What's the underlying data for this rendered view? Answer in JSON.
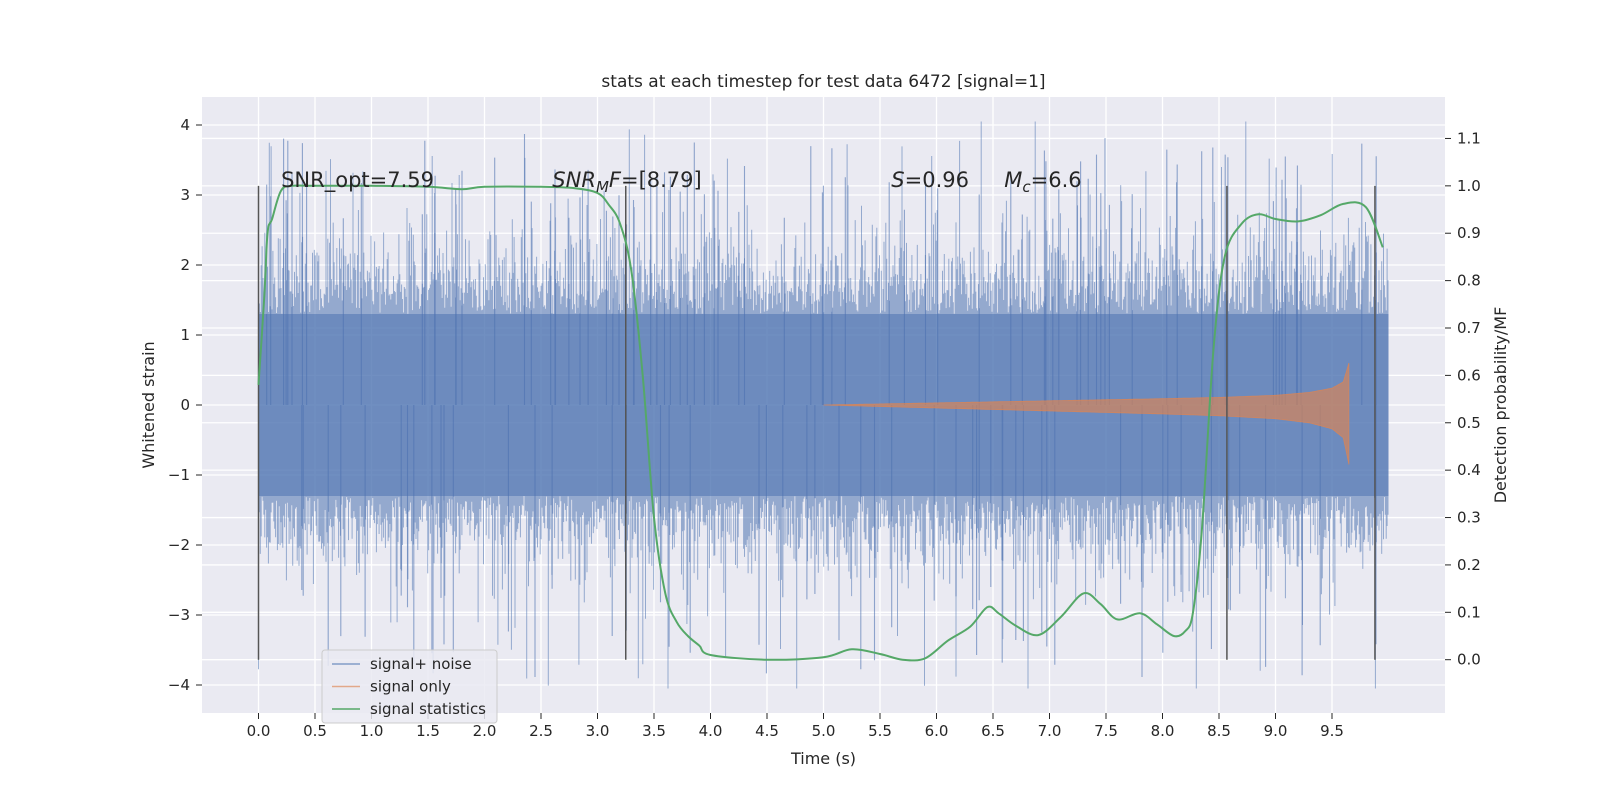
{
  "chart_data": {
    "type": "line",
    "title": "stats at each timestep for test data 6472 [signal=1]",
    "xlabel": "Time (s)",
    "ylabel": "Whitened strain",
    "ylabel_right": "Detection probability/MF",
    "xlim": [
      -0.5,
      10.5
    ],
    "ylim": [
      -4.4,
      4.4
    ],
    "ylim_right": [
      -0.1125,
      1.1875
    ],
    "x_ticks": [
      0.0,
      0.5,
      1.0,
      1.5,
      2.0,
      2.5,
      3.0,
      3.5,
      4.0,
      4.5,
      5.0,
      5.5,
      6.0,
      6.5,
      7.0,
      7.5,
      8.0,
      8.5,
      9.0,
      9.5
    ],
    "x_tick_labels": [
      "0.0",
      "0.5",
      "1.0",
      "1.5",
      "2.0",
      "2.5",
      "3.0",
      "3.5",
      "4.0",
      "4.5",
      "5.0",
      "5.5",
      "6.0",
      "6.5",
      "7.0",
      "7.5",
      "8.0",
      "8.5",
      "9.0",
      "9.5"
    ],
    "y_ticks": [
      4,
      3,
      2,
      1,
      0,
      -1,
      -2,
      -3,
      -4
    ],
    "y_tick_labels": [
      "4",
      "3",
      "2",
      "1",
      "0",
      "−1",
      "−2",
      "−3",
      "−4"
    ],
    "y_right_ticks": [
      1.1,
      1.0,
      0.9,
      0.8,
      0.7,
      0.6,
      0.5,
      0.4,
      0.3,
      0.2,
      0.1,
      0.0
    ],
    "y_right_tick_labels": [
      "1.1",
      "1.0",
      "0.9",
      "0.8",
      "0.7",
      "0.6",
      "0.5",
      "0.4",
      "0.3",
      "0.2",
      "0.1",
      "0.0"
    ],
    "grid": true,
    "legend_position": "lower-left",
    "annotations": [
      {
        "text": "SNR_opt=7.59",
        "x": 0.2,
        "y": 3.2
      },
      {
        "text": "SNR_MF=[8.79]",
        "x": 2.6,
        "y": 3.2
      },
      {
        "text": "S=0.96",
        "x": 5.6,
        "y": 3.2
      },
      {
        "text": "M_c=6.6",
        "x": 6.6,
        "y": 3.2
      }
    ],
    "vertical_markers": [
      0.0,
      3.25,
      8.57,
      9.88
    ],
    "series": [
      {
        "name": "signal+ noise",
        "axis": "left",
        "color": "#4c72b0",
        "note_visible": "dense noise, mostly within about ±1.3, peaks to about 4.05 and -4.05",
        "x_range": [
          0.0,
          10.0
        ],
        "envelope_core": 1.3,
        "envelope_typical": 2.5,
        "peak_max": 4.05,
        "peak_min": -4.05
      },
      {
        "name": "signal only",
        "axis": "left",
        "color": "#dd8452",
        "x": [
          5.0,
          6.0,
          7.0,
          8.0,
          8.5,
          9.0,
          9.3,
          9.5,
          9.6,
          9.65
        ],
        "amplitude": [
          0.0,
          0.05,
          0.1,
          0.15,
          0.18,
          0.23,
          0.3,
          0.4,
          0.55,
          1.0
        ]
      },
      {
        "name": "signal statistics",
        "axis": "right",
        "color": "#55a868",
        "x": [
          0.0,
          0.05,
          0.08,
          0.12,
          0.2,
          0.3,
          0.5,
          1.0,
          1.5,
          1.8,
          2.0,
          2.5,
          2.8,
          3.0,
          3.1,
          3.2,
          3.3,
          3.4,
          3.5,
          3.6,
          3.7,
          3.8,
          3.9,
          4.0,
          4.5,
          5.0,
          5.25,
          5.5,
          5.7,
          5.9,
          6.1,
          6.3,
          6.45,
          6.55,
          6.7,
          6.9,
          7.1,
          7.3,
          7.45,
          7.6,
          7.8,
          7.95,
          8.1,
          8.2,
          8.27,
          8.35,
          8.45,
          8.55,
          8.7,
          8.85,
          9.0,
          9.2,
          9.4,
          9.6,
          9.8,
          9.95
        ],
        "y": [
          0.58,
          0.76,
          0.9,
          0.93,
          0.99,
          1.0,
          1.0,
          1.0,
          0.998,
          0.993,
          0.998,
          0.998,
          0.995,
          0.985,
          0.96,
          0.92,
          0.82,
          0.6,
          0.3,
          0.14,
          0.08,
          0.05,
          0.03,
          0.01,
          0.0,
          0.005,
          0.022,
          0.012,
          0.0,
          0.003,
          0.04,
          0.07,
          0.111,
          0.098,
          0.072,
          0.052,
          0.09,
          0.14,
          0.118,
          0.085,
          0.098,
          0.075,
          0.05,
          0.06,
          0.1,
          0.28,
          0.65,
          0.85,
          0.92,
          0.94,
          0.93,
          0.925,
          0.938,
          0.962,
          0.955,
          0.87
        ]
      }
    ]
  }
}
